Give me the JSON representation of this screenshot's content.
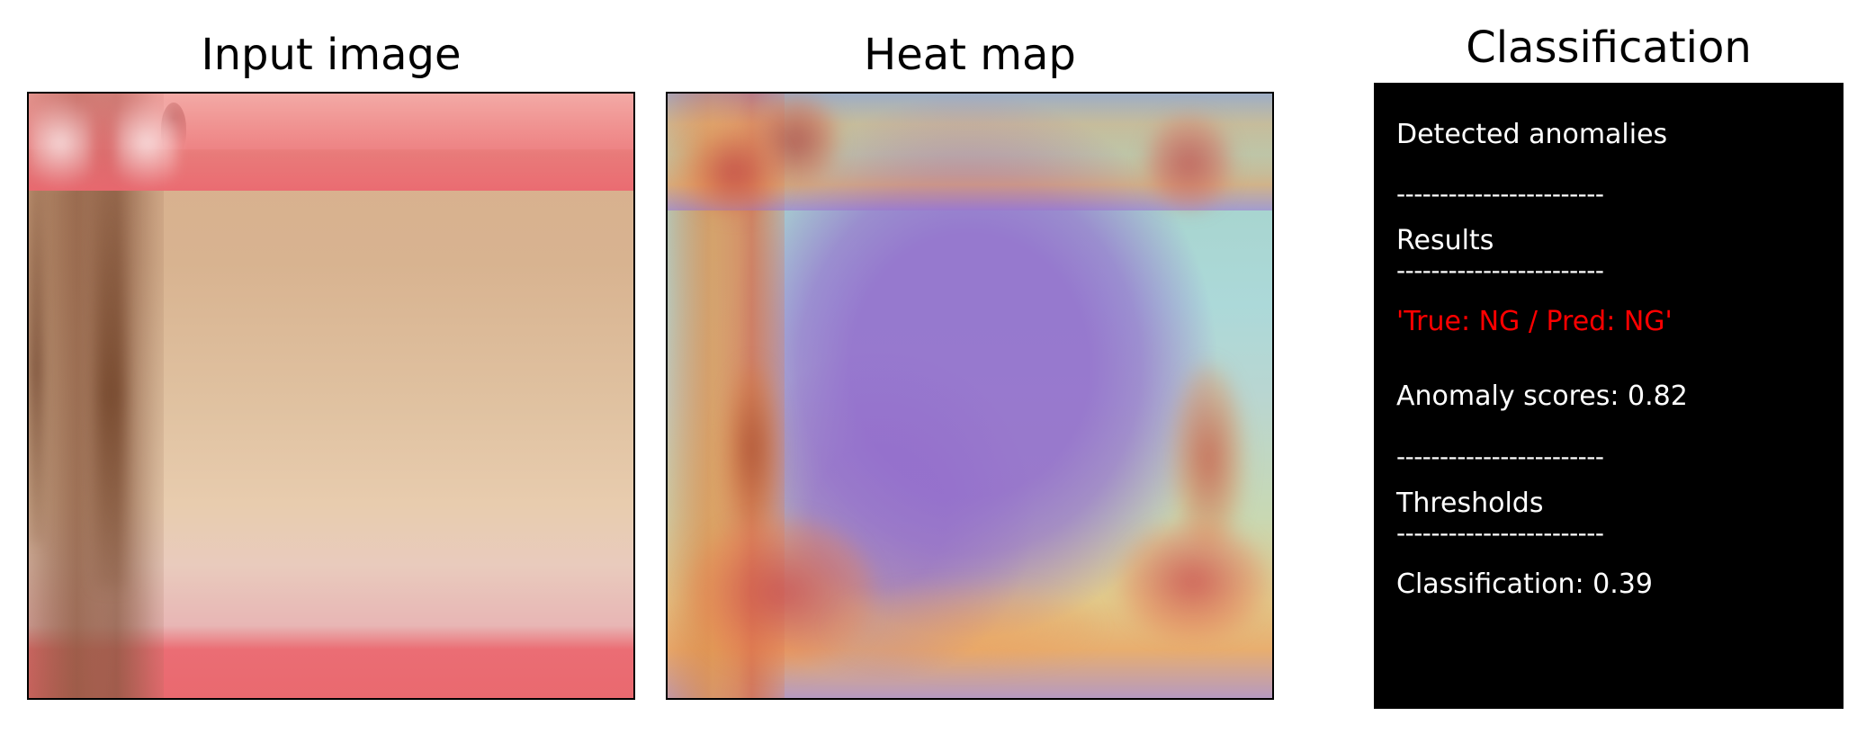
{
  "panels": {
    "input": {
      "title": "Input image"
    },
    "heatmap": {
      "title": "Heat map"
    },
    "classification": {
      "title": "Classification",
      "detected_heading": "Detected anomalies",
      "separator": "------------------------",
      "results_heading": "Results",
      "result_value": "'True: NG / Pred: NG'",
      "anomaly_scores_label": "Anomaly scores: 0.82",
      "thresholds_heading": "Thresholds",
      "classification_threshold": "Classification: 0.39",
      "result_color": "#ff0000",
      "text_color": "#ffffff",
      "background_color": "#000000"
    }
  }
}
